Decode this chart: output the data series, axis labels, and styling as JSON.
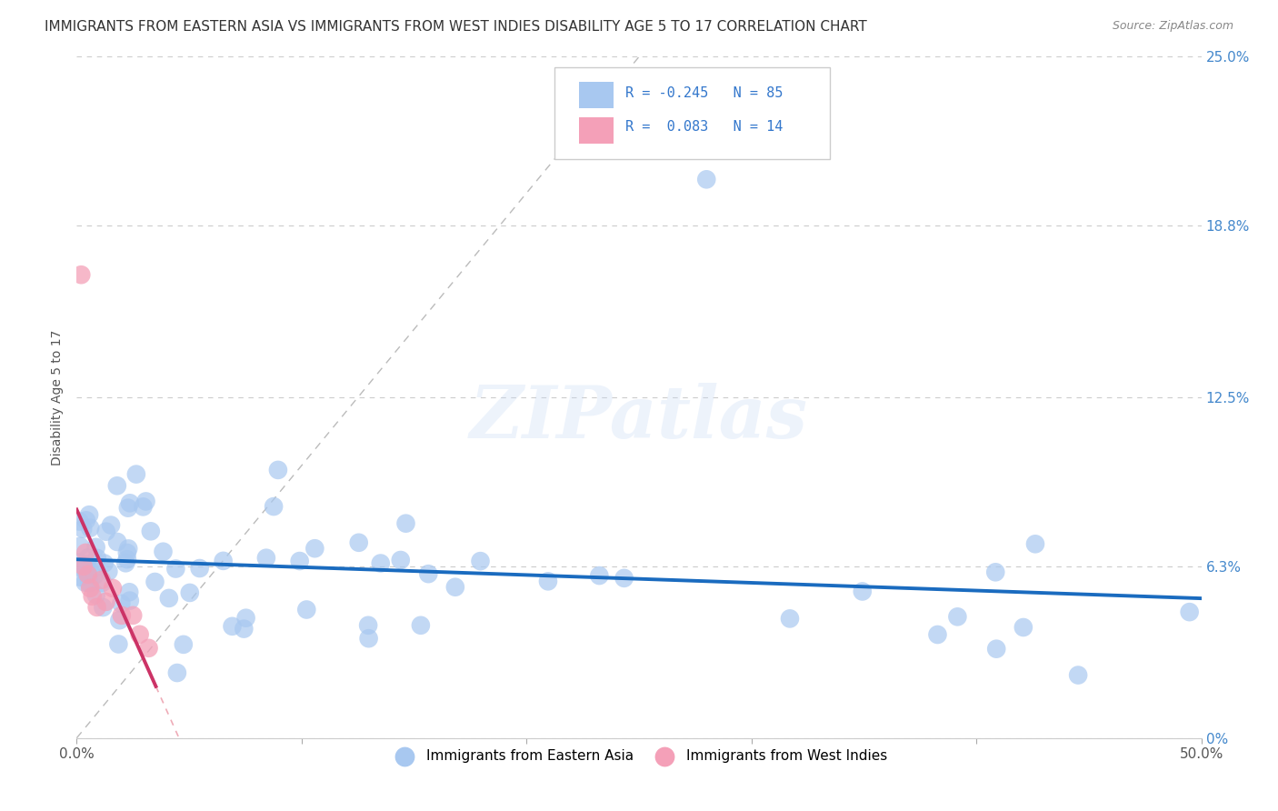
{
  "title": "IMMIGRANTS FROM EASTERN ASIA VS IMMIGRANTS FROM WEST INDIES DISABILITY AGE 5 TO 17 CORRELATION CHART",
  "source": "Source: ZipAtlas.com",
  "ylabel": "Disability Age 5 to 17",
  "xlim": [
    0.0,
    0.5
  ],
  "ylim": [
    0.0,
    0.25
  ],
  "yticks_right": [
    0.0,
    0.063,
    0.125,
    0.188,
    0.25
  ],
  "yticklabels_right": [
    "0%",
    "6.3%",
    "12.5%",
    "18.8%",
    "25.0%"
  ],
  "legend_label1": "Immigrants from Eastern Asia",
  "legend_label2": "Immigrants from West Indies",
  "watermark": "ZIPatlas",
  "blue_color": "#a8c8f0",
  "pink_color": "#f4a0b8",
  "trend_blue_color": "#1a6bbf",
  "trend_pink_color": "#cc3366",
  "trend_pink_dash_color": "#e88899",
  "bg_color": "#ffffff",
  "grid_color": "#cccccc",
  "legend_box_color": "#dddddd",
  "blue_R": -0.245,
  "blue_N": 85,
  "pink_R": 0.083,
  "pink_N": 14,
  "title_color": "#333333",
  "source_color": "#888888",
  "tick_color": "#4488cc",
  "xtick_color": "#555555"
}
